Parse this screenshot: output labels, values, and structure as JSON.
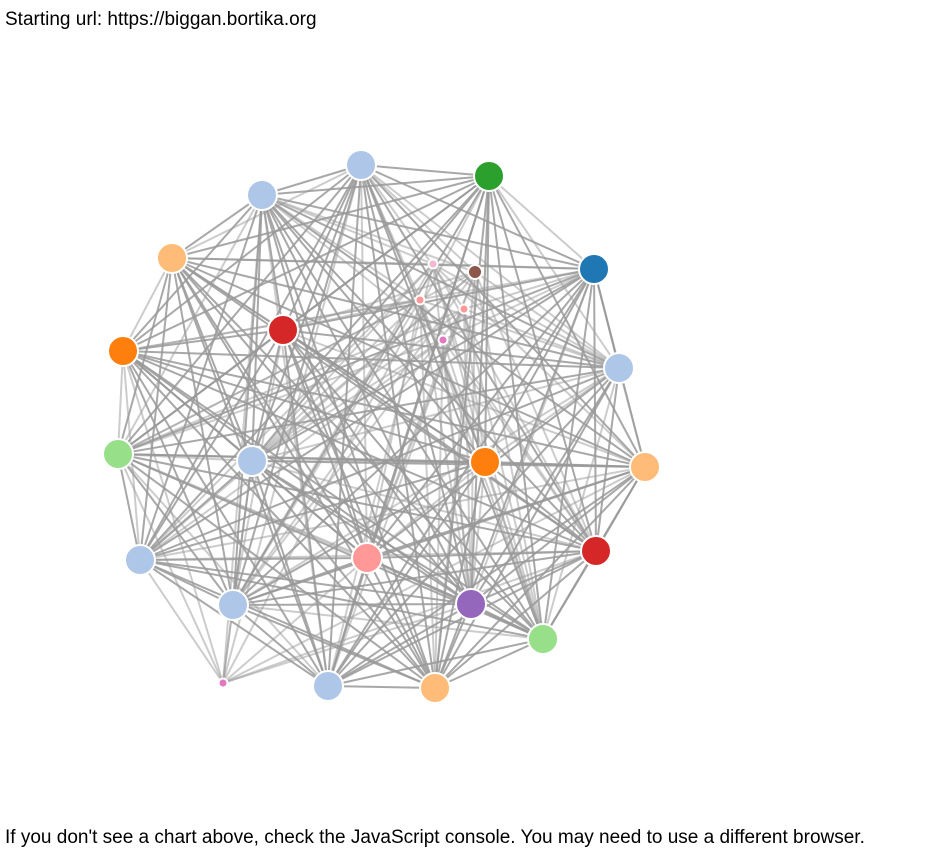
{
  "header": {
    "starting_url_text": "Starting url: https://biggan.bortika.org"
  },
  "footer": {
    "note": "If you don't see a chart above, check the JavaScript console. You may need to use a different browser."
  },
  "graph": {
    "nodes": [
      {
        "id": "n1",
        "color": "#aec7e8"
      },
      {
        "id": "n2",
        "color": "#2ca02c"
      },
      {
        "id": "n3",
        "color": "#aec7e8"
      },
      {
        "id": "n4",
        "color": "#ffbb78"
      },
      {
        "id": "n5",
        "color": "#1f77b4"
      },
      {
        "id": "n6",
        "color": "#d62728"
      },
      {
        "id": "n7",
        "color": "#ff7f0e"
      },
      {
        "id": "n8",
        "color": "#aec7e8"
      },
      {
        "id": "n9",
        "color": "#98df8a"
      },
      {
        "id": "n10",
        "color": "#aec7e8"
      },
      {
        "id": "n11",
        "color": "#ff7f0e"
      },
      {
        "id": "n12",
        "color": "#ffbb78"
      },
      {
        "id": "n13",
        "color": "#aec7e8"
      },
      {
        "id": "n14",
        "color": "#d62728"
      },
      {
        "id": "n15",
        "color": "#ff9896"
      },
      {
        "id": "n16",
        "color": "#aec7e8"
      },
      {
        "id": "n17",
        "color": "#9467bd"
      },
      {
        "id": "n18",
        "color": "#98df8a"
      },
      {
        "id": "n19",
        "color": "#aec7e8"
      },
      {
        "id": "n20",
        "color": "#ffbb78"
      },
      {
        "id": "s1",
        "color": "#f7b6d2"
      },
      {
        "id": "s2",
        "color": "#8c564b"
      },
      {
        "id": "s3",
        "color": "#ff9896"
      },
      {
        "id": "s4",
        "color": "#ff9896"
      },
      {
        "id": "s5",
        "color": "#e377c2"
      },
      {
        "id": "s6",
        "color": "#e377c2"
      }
    ]
  }
}
